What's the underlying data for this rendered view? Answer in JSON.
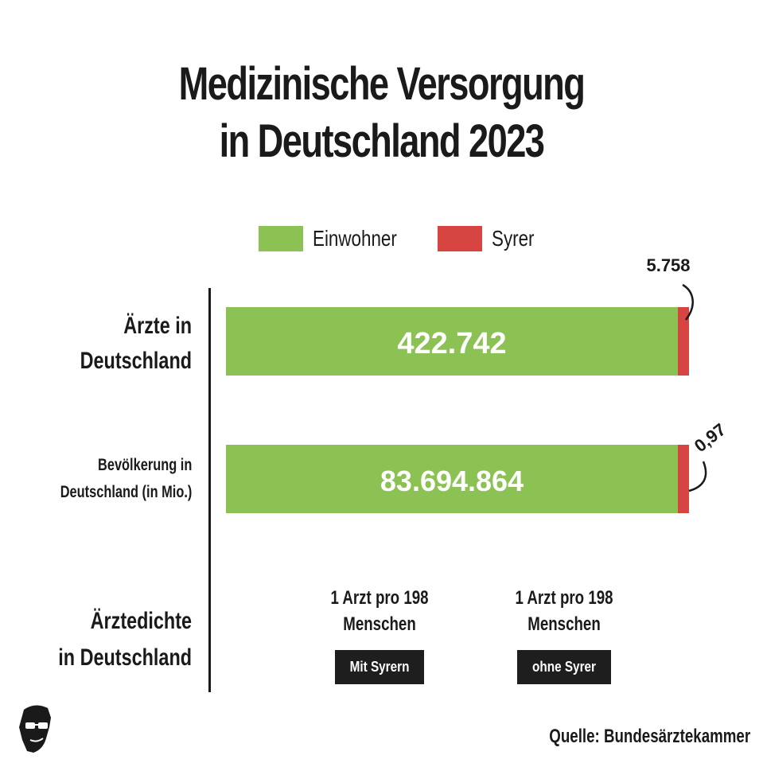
{
  "title_lines": [
    "Medizinische Versorgung",
    "in Deutschland 2023"
  ],
  "legend": [
    {
      "label": "Einwohner",
      "color": "#8cc153"
    },
    {
      "label": "Syrer",
      "color": "#d64541"
    }
  ],
  "chart_data": {
    "type": "bar",
    "orientation": "horizontal",
    "stacked": true,
    "categories": [
      "Ärzte in Deutschland",
      "Bevölkerung in Deutschland (in Mio.)"
    ],
    "series": [
      {
        "name": "Einwohner",
        "values_label": [
          "422.742",
          "83.694.864"
        ]
      },
      {
        "name": "Syrer",
        "values_label": [
          "5.758",
          "0,97"
        ]
      }
    ],
    "values": {
      "einwohner": [
        422742,
        83.694864
      ],
      "syrer": [
        5758,
        0.97
      ]
    }
  },
  "rows": {
    "doctors": {
      "label_lines": [
        "Ärzte in",
        "Deutschland"
      ],
      "main_value": "422.742",
      "minor_value": "5.758"
    },
    "population": {
      "label_lines": [
        "Bevölkerung in",
        "Deutschland (in Mio.)"
      ],
      "main_value": "83.694.864",
      "minor_value": "0,97"
    },
    "density": {
      "label_lines": [
        "Ärztedichte",
        "in Deutschland"
      ]
    }
  },
  "density": [
    {
      "line1": "1 Arzt pro 198",
      "line2": "Menschen",
      "tag": "Mit Syrern"
    },
    {
      "line1": "1 Arzt pro 198",
      "line2": "Menschen",
      "tag": "ohne Syrer"
    }
  ],
  "source": "Quelle: Bundesärztekammer",
  "logo_icon": "sunglasses-face-icon"
}
